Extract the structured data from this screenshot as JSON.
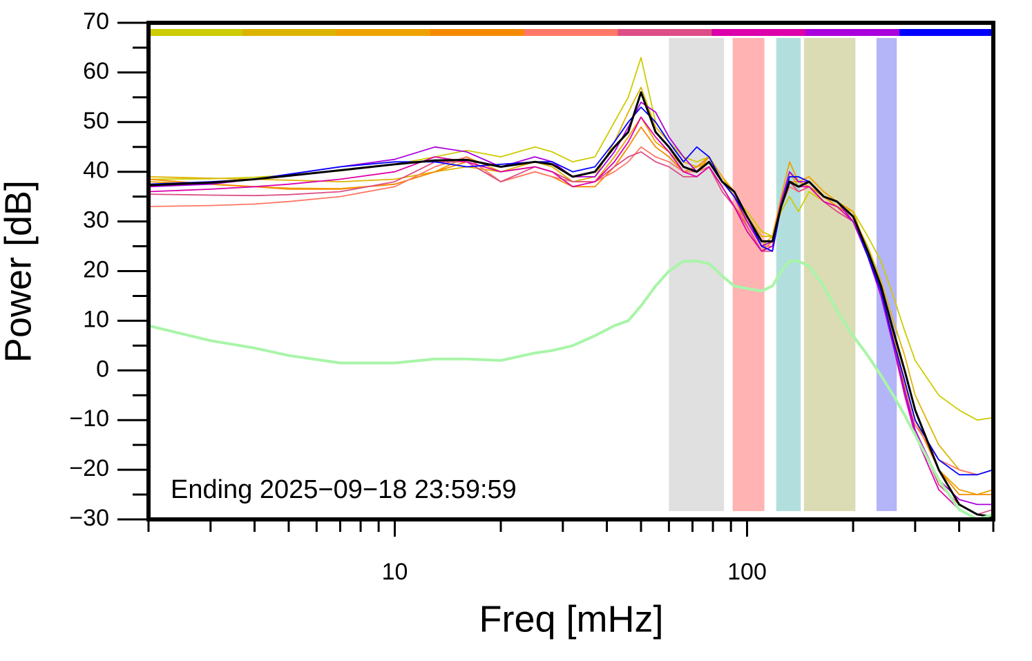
{
  "chart_data": {
    "type": "line",
    "xlabel": "Freq [mHz]",
    "ylabel": "Power [dB]",
    "annotation": "Ending 2025−09−18 23:59:59",
    "xscale": "log",
    "xlim": [
      2,
      500
    ],
    "ylim": [
      -30,
      70
    ],
    "xticks": [
      10,
      100
    ],
    "xminorticks": [
      2,
      3,
      4,
      5,
      6,
      7,
      8,
      9,
      20,
      30,
      40,
      50,
      60,
      70,
      80,
      90,
      200,
      300,
      400,
      500
    ],
    "yticks": [
      {
        "value": -30,
        "label": "−30"
      },
      {
        "value": -20,
        "label": "−20"
      },
      {
        "value": -10,
        "label": "−10"
      },
      0,
      10,
      20,
      30,
      40,
      50,
      60,
      70
    ],
    "yminorticks": [
      -25,
      -15,
      -5,
      5,
      15,
      25,
      35,
      45,
      55,
      65
    ],
    "color_bar": [
      "#cccc00",
      "#ddb300",
      "#eea200",
      "#f58a00",
      "#ff7766",
      "#dd4e86",
      "#dd00aa",
      "#aa00dd",
      "#0000ff"
    ],
    "bands": [
      {
        "range": [
          60,
          86
        ],
        "color": "#e0e0e0"
      },
      {
        "range": [
          91,
          112
        ],
        "color": "#ffb3b3"
      },
      {
        "range": [
          121,
          142
        ],
        "color": "#b3dede"
      },
      {
        "range": [
          145,
          203
        ],
        "color": "#dcdcb4"
      },
      {
        "range": [
          233,
          266
        ],
        "color": "#b4b4f8"
      }
    ],
    "x": [
      2,
      3,
      4,
      5,
      7,
      10,
      13,
      16,
      20,
      25,
      28,
      32,
      37,
      42,
      46,
      50,
      55,
      60,
      66,
      72,
      78,
      85,
      92,
      100,
      110,
      118,
      125,
      132,
      140,
      150,
      165,
      180,
      200,
      220,
      240,
      260,
      280,
      300,
      350,
      400,
      450,
      500
    ],
    "series": [
      {
        "color": "#cccc00",
        "width": 1.8,
        "values": [
          38.5,
          38.6,
          38.9,
          39.3,
          40.2,
          41.5,
          43,
          44.3,
          43,
          45,
          44,
          42,
          43,
          50,
          55,
          63,
          50,
          46,
          43,
          42,
          43,
          39,
          35,
          32,
          28,
          27,
          32,
          35,
          32,
          36,
          34,
          33,
          32,
          27,
          22,
          15,
          8,
          2,
          -5,
          -8,
          -10,
          -9.5
        ]
      },
      {
        "color": "#ddb300",
        "width": 1.8,
        "values": [
          39,
          38.7,
          38.5,
          38.3,
          38,
          38.5,
          40,
          41,
          40,
          42,
          41,
          38,
          39,
          46,
          52,
          57,
          49,
          46,
          42,
          41,
          42,
          38,
          35,
          31,
          27,
          27,
          34,
          40,
          37,
          38,
          35,
          34,
          31,
          25,
          18,
          10,
          3,
          -5,
          -15,
          -20,
          -21,
          -20
        ]
      },
      {
        "color": "#eea200",
        "width": 1.8,
        "values": [
          38,
          37.5,
          37,
          36.7,
          36.6,
          37.5,
          40,
          43,
          40,
          41,
          40,
          38,
          38,
          43,
          47,
          51,
          46,
          44,
          41,
          40,
          43,
          39,
          36,
          30,
          25,
          27,
          35,
          42,
          38,
          39,
          36,
          34,
          32,
          24,
          17,
          7,
          -2,
          -10,
          -20,
          -24,
          -25,
          -24
        ]
      },
      {
        "color": "#f58a00",
        "width": 1.8,
        "values": [
          38.5,
          37.5,
          37,
          36.5,
          36.5,
          37.5,
          40,
          42,
          38,
          40,
          39,
          37,
          37,
          41,
          45,
          49,
          45,
          43,
          40,
          41,
          43,
          38,
          35,
          29,
          24,
          26,
          34,
          38,
          38,
          37,
          35,
          33,
          31,
          24,
          16,
          7,
          -3,
          -10,
          -20,
          -25,
          -25,
          -25
        ]
      },
      {
        "color": "#ff7766",
        "width": 1.8,
        "values": [
          33,
          33.2,
          33.5,
          34,
          35,
          37,
          41,
          43,
          38,
          40,
          39,
          38,
          38,
          40,
          42,
          45,
          43,
          42,
          40,
          40,
          41,
          37,
          33,
          30,
          25,
          25,
          33,
          37,
          36,
          37,
          34,
          32,
          30,
          23,
          16,
          6,
          -4,
          -11,
          -18,
          -20,
          -21,
          -20
        ]
      },
      {
        "color": "#dd4e86",
        "width": 1.8,
        "values": [
          35.5,
          35.3,
          35.2,
          35.4,
          36,
          38,
          42,
          42,
          38,
          41,
          40,
          38,
          38,
          41,
          43,
          44,
          42,
          41,
          39,
          39,
          41,
          36,
          33,
          29,
          24,
          24,
          33,
          38,
          36,
          37,
          34,
          32,
          30,
          23,
          15,
          6,
          -4,
          -12,
          -23,
          -27,
          -29,
          -28
        ]
      },
      {
        "color": "#dd00aa",
        "width": 1.8,
        "values": [
          36,
          36.5,
          37,
          37.5,
          38.5,
          40,
          43,
          42,
          40,
          41,
          40,
          37,
          38,
          42,
          46,
          51,
          47,
          44,
          40,
          39,
          41,
          37,
          33,
          28,
          24,
          25,
          33,
          38,
          37,
          37,
          34,
          33,
          30,
          23,
          15,
          5,
          -5,
          -13,
          -24,
          -28,
          -30,
          -29
        ]
      },
      {
        "color": "#aa00dd",
        "width": 1.8,
        "values": [
          37,
          37.5,
          38.5,
          39.5,
          41,
          42.5,
          45,
          44,
          41,
          43,
          42,
          39,
          39,
          44,
          49,
          54,
          52,
          47,
          43,
          40,
          42,
          38,
          35,
          30,
          25,
          26,
          34,
          40,
          38,
          38,
          35,
          34,
          30,
          23,
          15,
          5,
          -4,
          -12,
          -22,
          -26,
          -27,
          -27
        ]
      },
      {
        "color": "#0000ff",
        "width": 1.8,
        "values": [
          37.5,
          38,
          38.5,
          39.5,
          41,
          42,
          42,
          41,
          41.5,
          42,
          42,
          40,
          41,
          46,
          50,
          53,
          50,
          46,
          42,
          45,
          43,
          38,
          35,
          31,
          25,
          24,
          33,
          39,
          39,
          38,
          35,
          34,
          31,
          23,
          16,
          6,
          -2,
          -10,
          -18,
          -21,
          -21,
          -20
        ]
      },
      {
        "color": "#000000",
        "width": 3,
        "values": [
          37.3,
          37.8,
          38.5,
          39.2,
          40.3,
          41.5,
          42.3,
          42.4,
          41,
          42,
          41.5,
          39,
          40,
          45,
          48,
          56,
          48,
          45,
          41,
          40,
          42,
          38,
          36,
          31,
          26,
          26,
          33,
          38,
          37,
          38,
          35,
          34,
          31,
          24,
          17,
          8,
          0,
          -8,
          -20,
          -27,
          -29,
          -29.5
        ]
      },
      {
        "color": "#a8f5a8",
        "width": 4,
        "values": [
          9,
          6,
          4.5,
          3,
          1.5,
          1.5,
          2.3,
          2.3,
          2,
          3.5,
          4,
          5,
          7,
          9,
          10,
          13,
          17,
          20,
          22,
          22,
          21.5,
          19,
          17,
          16.5,
          16,
          17,
          20,
          22,
          22,
          21,
          17,
          12,
          7,
          3,
          -1,
          -5,
          -9,
          -13,
          -22,
          -28,
          -30,
          -29
        ]
      }
    ]
  }
}
